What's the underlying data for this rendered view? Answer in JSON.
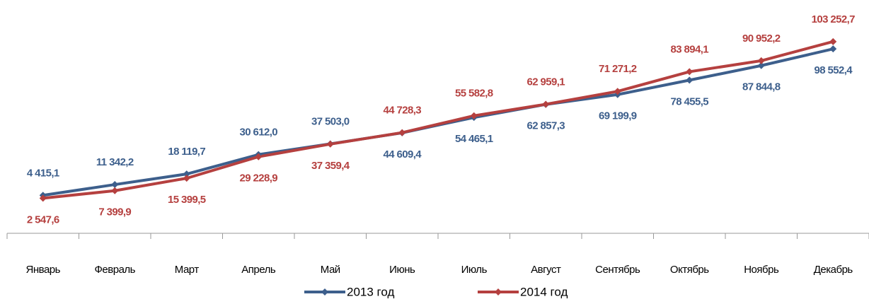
{
  "chart_data": {
    "type": "line",
    "categories": [
      "Январь",
      "Февраль",
      "Март",
      "Апрель",
      "Май",
      "Июнь",
      "Июль",
      "Август",
      "Сентябрь",
      "Октябрь",
      "Ноябрь",
      "Декабрь"
    ],
    "series": [
      {
        "name": "2013 год",
        "color": "#3d5f8c",
        "values": [
          4415.1,
          11342.2,
          18119.7,
          30612.0,
          37503.0,
          44609.4,
          54465.1,
          62857.3,
          69199.9,
          78455.5,
          87844.8,
          98552.4
        ],
        "value_labels": [
          "4 415,1",
          "11 342,2",
          "18 119,7",
          "30 612,0",
          "37 503,0",
          "44 609,4",
          "54 465,1",
          "62 857,3",
          "69 199,9",
          "78 455,5",
          "87 844,8",
          "98 552,4"
        ]
      },
      {
        "name": "2014 год",
        "color": "#b5403f",
        "values": [
          2547.6,
          7399.9,
          15399.5,
          29228.9,
          37359.4,
          44728.3,
          55582.8,
          62959.1,
          71271.2,
          83894.1,
          90952.2,
          103252.7
        ],
        "value_labels": [
          "2 547,6",
          "7 399,9",
          "15 399,5",
          "29 228,9",
          "37 359,4",
          "44 728,3",
          "55 582,8",
          "62 959,1",
          "71 271,2",
          "83 894,1",
          "90 952,2",
          "103 252,7"
        ]
      }
    ],
    "ylim": [
      -20000,
      130000
    ],
    "legend": "bottom"
  }
}
